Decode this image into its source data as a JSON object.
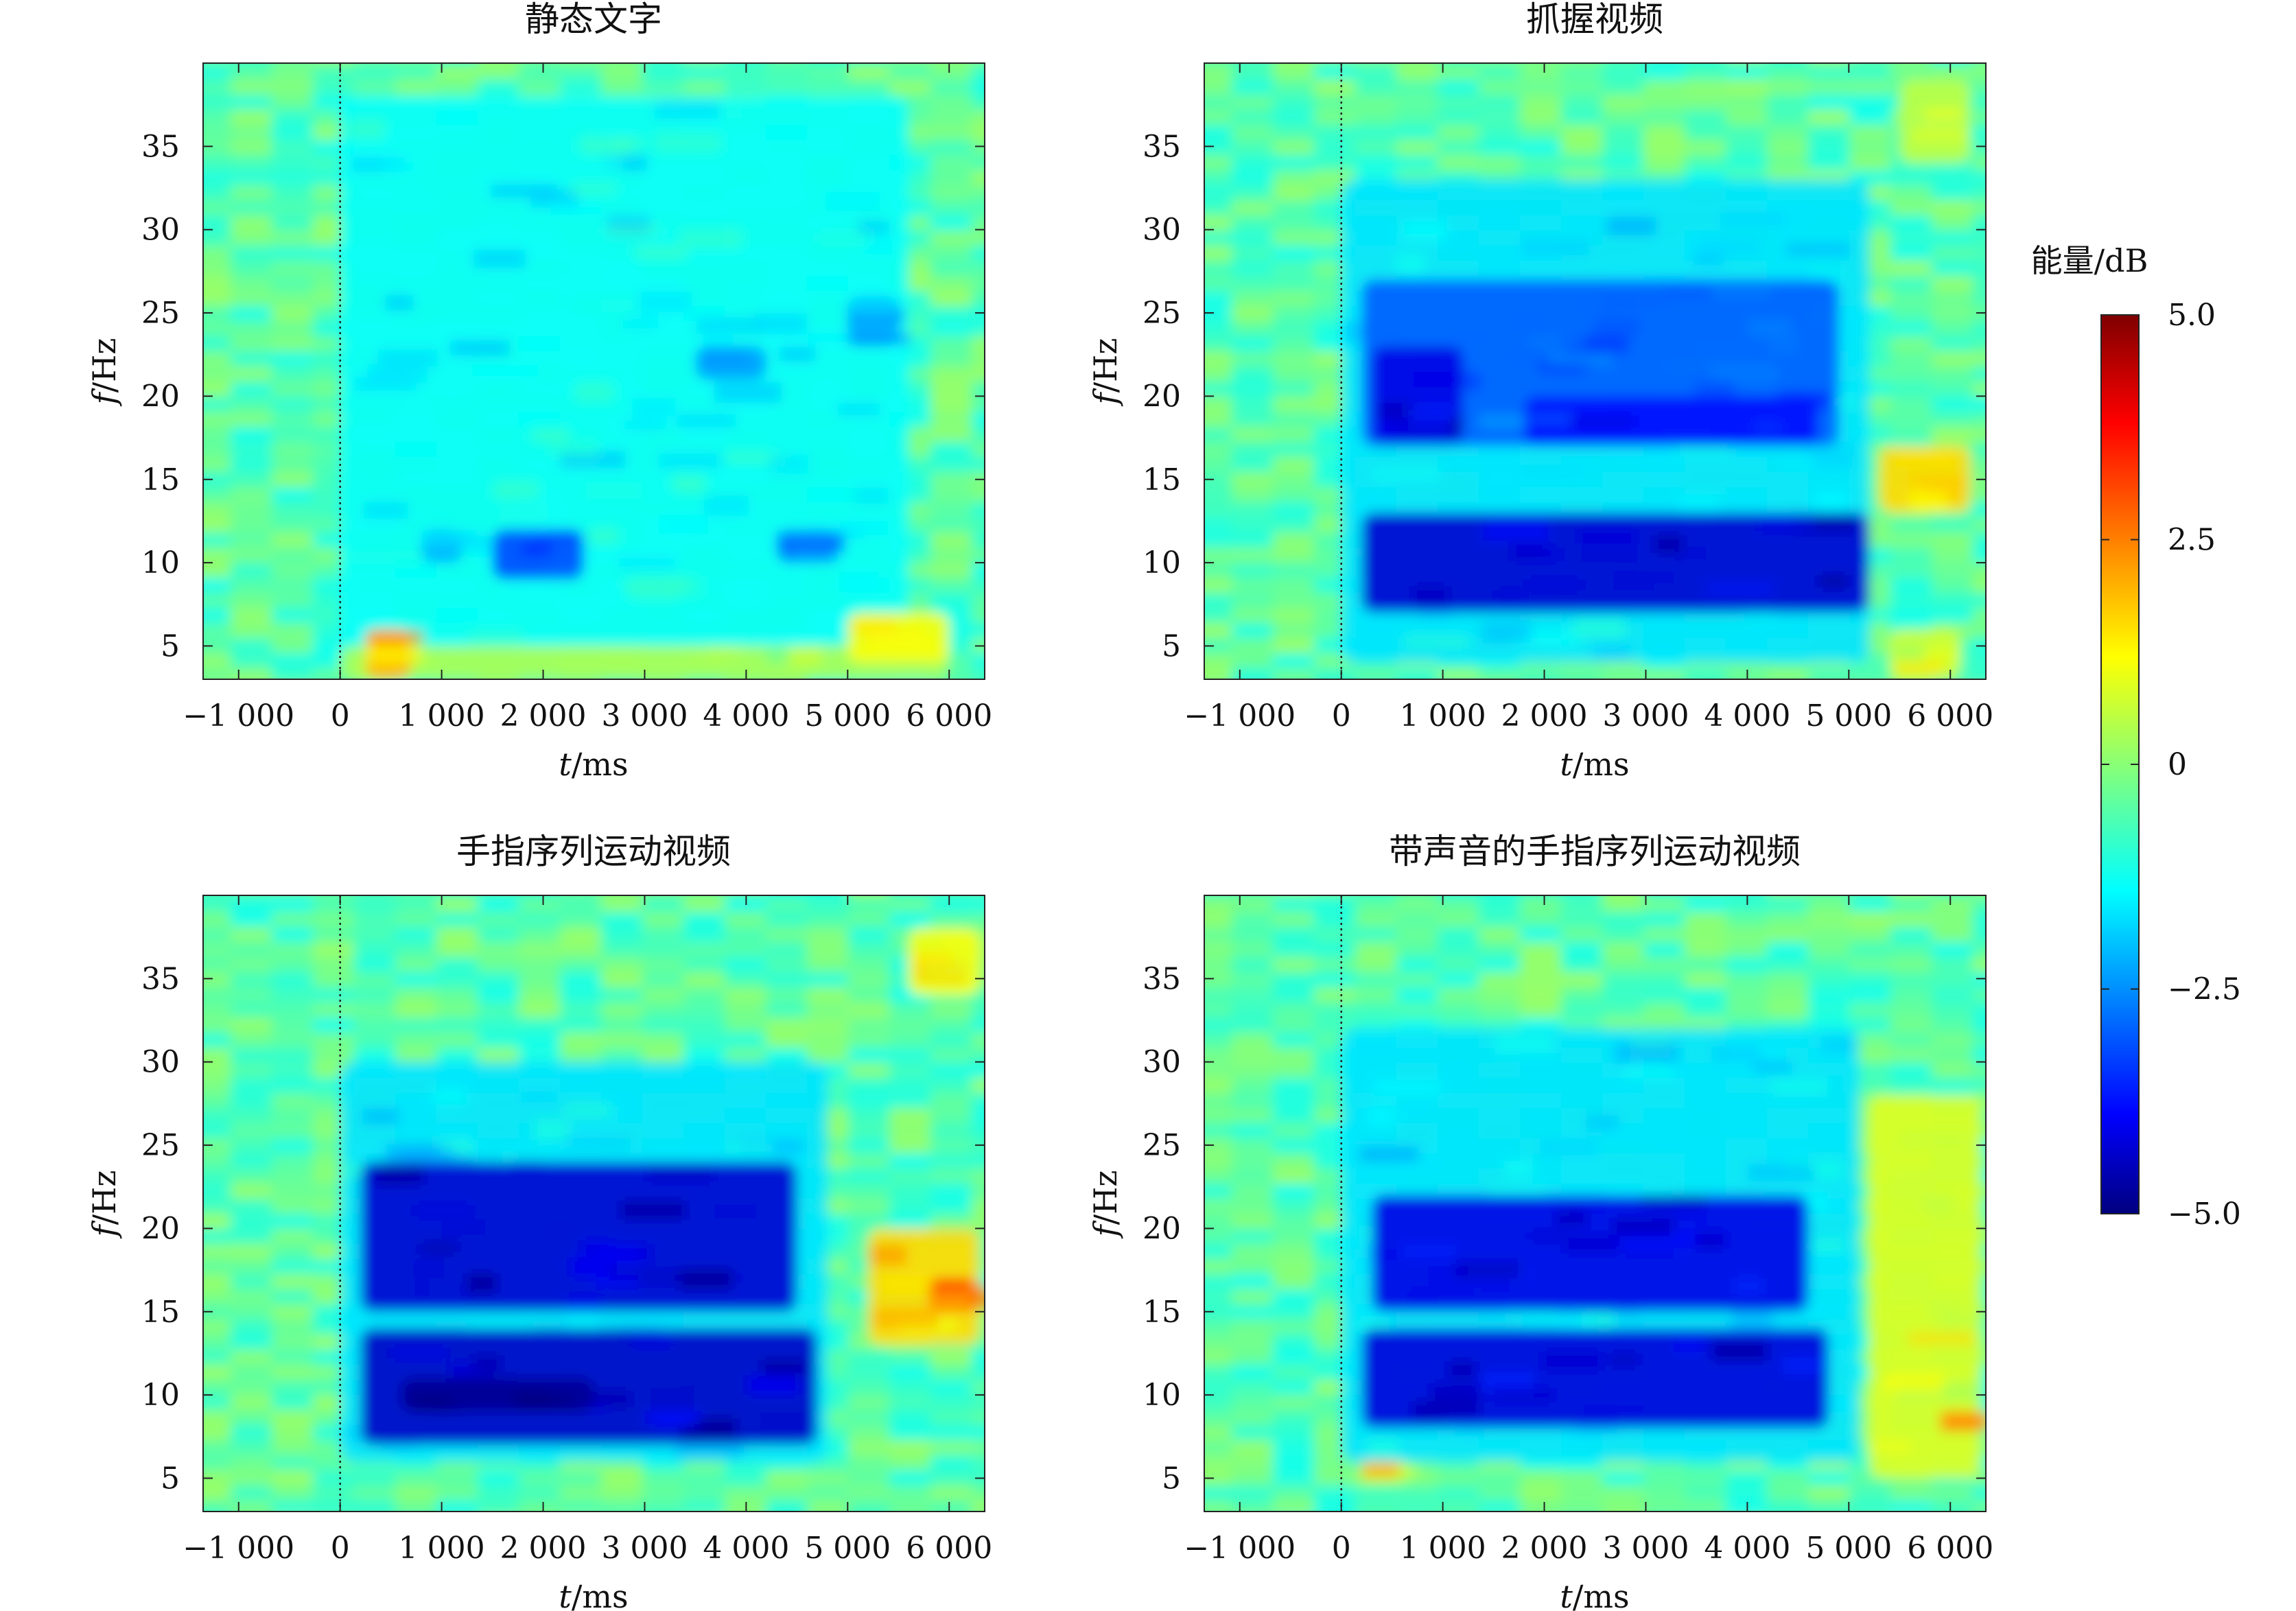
{
  "chart_data": [
    {
      "type": "heatmap",
      "title": "静态文字",
      "xlabel_var": "t",
      "xlabel_unit": "/ms",
      "ylabel_var": "f",
      "ylabel_unit": "/Hz",
      "xlim": [
        -1350,
        6350
      ],
      "ylim": [
        3,
        40
      ],
      "xticks": [
        -1000,
        0,
        1000,
        2000,
        3000,
        4000,
        5000,
        6000
      ],
      "xtick_labels": [
        "−1 000",
        "0",
        "1 000",
        "2 000",
        "3 000",
        "4 000",
        "5 000",
        "6 000"
      ],
      "yticks": [
        5,
        10,
        15,
        20,
        25,
        30,
        35
      ],
      "ytick_labels": [
        "5",
        "10",
        "15",
        "20",
        "25",
        "30",
        "35"
      ],
      "stimulus_onset_ms": 0,
      "regions": [
        {
          "t": [
            0,
            5600
          ],
          "f": [
            5,
            38
          ],
          "power_db": -1.2
        },
        {
          "t": [
            0,
            6000
          ],
          "f": [
            3,
            5
          ],
          "power_db": 0.4
        },
        {
          "t": [
            1500,
            2400
          ],
          "f": [
            9,
            12
          ],
          "power_db": -3.0
        },
        {
          "t": [
            800,
            1200
          ],
          "f": [
            10,
            12
          ],
          "power_db": -2.0
        },
        {
          "t": [
            4300,
            4900
          ],
          "f": [
            10,
            12
          ],
          "power_db": -2.5
        },
        {
          "t": [
            3500,
            4200
          ],
          "f": [
            21,
            23
          ],
          "power_db": -2.2
        },
        {
          "t": [
            5000,
            5500
          ],
          "f": [
            23,
            26
          ],
          "power_db": -2.0
        },
        {
          "t": [
            250,
            700
          ],
          "f": [
            3,
            6
          ],
          "power_db": 2.0
        },
        {
          "t": [
            5000,
            6000
          ],
          "f": [
            4,
            7
          ],
          "power_db": 1.2
        }
      ]
    },
    {
      "type": "heatmap",
      "title": "抓握视频",
      "xlabel_var": "t",
      "xlabel_unit": "/ms",
      "ylabel_var": "f",
      "ylabel_unit": "/Hz",
      "xlim": [
        -1350,
        6350
      ],
      "ylim": [
        3,
        40
      ],
      "xticks": [
        -1000,
        0,
        1000,
        2000,
        3000,
        4000,
        5000,
        6000
      ],
      "xtick_labels": [
        "−1 000",
        "0",
        "1 000",
        "2 000",
        "3 000",
        "4 000",
        "5 000",
        "6 000"
      ],
      "yticks": [
        5,
        10,
        15,
        20,
        25,
        30,
        35
      ],
      "ytick_labels": [
        "5",
        "10",
        "15",
        "20",
        "25",
        "30",
        "35"
      ],
      "stimulus_onset_ms": 0,
      "regions": [
        {
          "t": [
            0,
            5200
          ],
          "f": [
            4,
            33
          ],
          "power_db": -1.5
        },
        {
          "t": [
            200,
            4900
          ],
          "f": [
            17,
            27
          ],
          "power_db": -2.8
        },
        {
          "t": [
            200,
            5200
          ],
          "f": [
            7,
            13
          ],
          "power_db": -4.2
        },
        {
          "t": [
            300,
            1200
          ],
          "f": [
            17,
            23
          ],
          "power_db": -4.0
        },
        {
          "t": [
            1800,
            4700
          ],
          "f": [
            17,
            20
          ],
          "power_db": -3.6
        },
        {
          "t": [
            5300,
            6200
          ],
          "f": [
            13,
            17
          ],
          "power_db": 1.6
        },
        {
          "t": [
            5400,
            6100
          ],
          "f": [
            3,
            6
          ],
          "power_db": 0.8
        },
        {
          "t": [
            5500,
            6200
          ],
          "f": [
            34,
            39
          ],
          "power_db": 0.6
        }
      ]
    },
    {
      "type": "heatmap",
      "title": "手指序列运动视频",
      "xlabel_var": "t",
      "xlabel_unit": "/ms",
      "ylabel_var": "f",
      "ylabel_unit": "/Hz",
      "xlim": [
        -1350,
        6350
      ],
      "ylim": [
        3,
        40
      ],
      "xticks": [
        -1000,
        0,
        1000,
        2000,
        3000,
        4000,
        5000,
        6000
      ],
      "xtick_labels": [
        "−1 000",
        "0",
        "1 000",
        "2 000",
        "3 000",
        "4 000",
        "5 000",
        "6 000"
      ],
      "yticks": [
        5,
        10,
        15,
        20,
        25,
        30,
        35
      ],
      "ytick_labels": [
        "5",
        "10",
        "15",
        "20",
        "25",
        "30",
        "35"
      ],
      "stimulus_onset_ms": 0,
      "regions": [
        {
          "t": [
            0,
            4800
          ],
          "f": [
            6,
            30
          ],
          "power_db": -1.5
        },
        {
          "t": [
            200,
            4500
          ],
          "f": [
            15,
            24
          ],
          "power_db": -4.2
        },
        {
          "t": [
            200,
            4700
          ],
          "f": [
            7,
            14
          ],
          "power_db": -4.3
        },
        {
          "t": [
            600,
            2500
          ],
          "f": [
            9,
            11
          ],
          "power_db": -4.8
        },
        {
          "t": [
            5200,
            6300
          ],
          "f": [
            13,
            20
          ],
          "power_db": 1.6
        },
        {
          "t": [
            5800,
            6300
          ],
          "f": [
            15,
            17
          ],
          "power_db": 2.8
        },
        {
          "t": [
            5600,
            6300
          ],
          "f": [
            34,
            38
          ],
          "power_db": 1.2
        }
      ]
    },
    {
      "type": "heatmap",
      "title": "带声音的手指序列运动视频",
      "xlabel_var": "t",
      "xlabel_unit": "/ms",
      "ylabel_var": "f",
      "ylabel_unit": "/Hz",
      "xlim": [
        -1350,
        6350
      ],
      "ylim": [
        3,
        40
      ],
      "xticks": [
        -1000,
        0,
        1000,
        2000,
        3000,
        4000,
        5000,
        6000
      ],
      "xtick_labels": [
        "−1 000",
        "0",
        "1 000",
        "2 000",
        "3 000",
        "4 000",
        "5 000",
        "6 000"
      ],
      "yticks": [
        5,
        10,
        15,
        20,
        25,
        30,
        35
      ],
      "ytick_labels": [
        "5",
        "10",
        "15",
        "20",
        "25",
        "30",
        "35"
      ],
      "stimulus_onset_ms": 0,
      "regions": [
        {
          "t": [
            0,
            5100
          ],
          "f": [
            6,
            32
          ],
          "power_db": -1.5
        },
        {
          "t": [
            300,
            4600
          ],
          "f": [
            15,
            22
          ],
          "power_db": -4.0
        },
        {
          "t": [
            200,
            4800
          ],
          "f": [
            8,
            14
          ],
          "power_db": -4.1
        },
        {
          "t": [
            5200,
            6300
          ],
          "f": [
            5,
            28
          ],
          "power_db": 0.9
        },
        {
          "t": [
            5900,
            6300
          ],
          "f": [
            8,
            9
          ],
          "power_db": 2.2
        },
        {
          "t": [
            200,
            600
          ],
          "f": [
            5,
            6
          ],
          "power_db": 1.5
        }
      ]
    }
  ],
  "colorbar": {
    "title": "能量/dB",
    "range": [
      -5.0,
      5.0
    ],
    "ticks": [
      5.0,
      2.5,
      0,
      -2.5,
      -5.0
    ],
    "tick_labels": [
      "5.0",
      "2.5",
      "0",
      "−2.5",
      "−5.0"
    ],
    "colormap": "jet"
  }
}
